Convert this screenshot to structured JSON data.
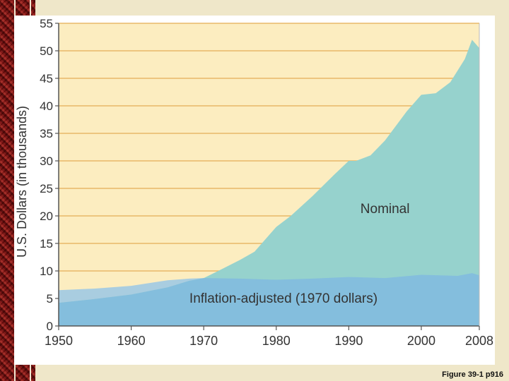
{
  "chart_data": {
    "type": "area",
    "title": "",
    "xlabel": "",
    "ylabel": "U.S. Dollars (in thousands)",
    "xlim": [
      1950,
      2008
    ],
    "ylim": [
      0,
      55
    ],
    "x_ticks": [
      "1950",
      "1960",
      "1970",
      "1980",
      "1990",
      "2000",
      "2008"
    ],
    "y_ticks": [
      "0",
      "5",
      "10",
      "15",
      "20",
      "25",
      "30",
      "35",
      "40",
      "45",
      "50",
      "55"
    ],
    "grid": true,
    "colors": {
      "plot_bg": "#fcedc0",
      "grid": "#e8b868",
      "nominal": "#96d2cd",
      "inflation": "#84bedd",
      "inflation_light": "#a9cde0",
      "axis": "#555555",
      "text": "#333333"
    },
    "series": [
      {
        "name": "Nominal",
        "x": [
          1950,
          1955,
          1960,
          1965,
          1968,
          1970,
          1972,
          1975,
          1977,
          1980,
          1982,
          1985,
          1988,
          1990,
          1991,
          1993,
          1995,
          1998,
          2000,
          2002,
          2004,
          2006,
          2007,
          2008
        ],
        "values": [
          4.2,
          4.9,
          5.7,
          7.0,
          8.2,
          8.7,
          10.0,
          12.0,
          13.5,
          18.0,
          20.0,
          23.6,
          27.5,
          30.0,
          30.0,
          31.0,
          33.7,
          39.0,
          42.0,
          42.3,
          44.3,
          48.5,
          52.0,
          50.5
        ]
      },
      {
        "name": "Inflation-adjusted (1970 dollars)",
        "x": [
          1950,
          1955,
          1960,
          1965,
          1968,
          1970,
          1975,
          1980,
          1985,
          1990,
          1995,
          2000,
          2005,
          2007,
          2008
        ],
        "values": [
          6.5,
          6.8,
          7.3,
          8.3,
          8.6,
          8.7,
          8.6,
          8.4,
          8.6,
          8.9,
          8.7,
          9.3,
          9.1,
          9.6,
          9.2
        ]
      }
    ],
    "annotations": [
      {
        "text": "Nominal",
        "x": 1995,
        "y": 20.5
      },
      {
        "text": "Inflation-adjusted (1970 dollars)",
        "x": 1981,
        "y": 4.2
      }
    ]
  },
  "caption": "Figure 39-1 p916"
}
